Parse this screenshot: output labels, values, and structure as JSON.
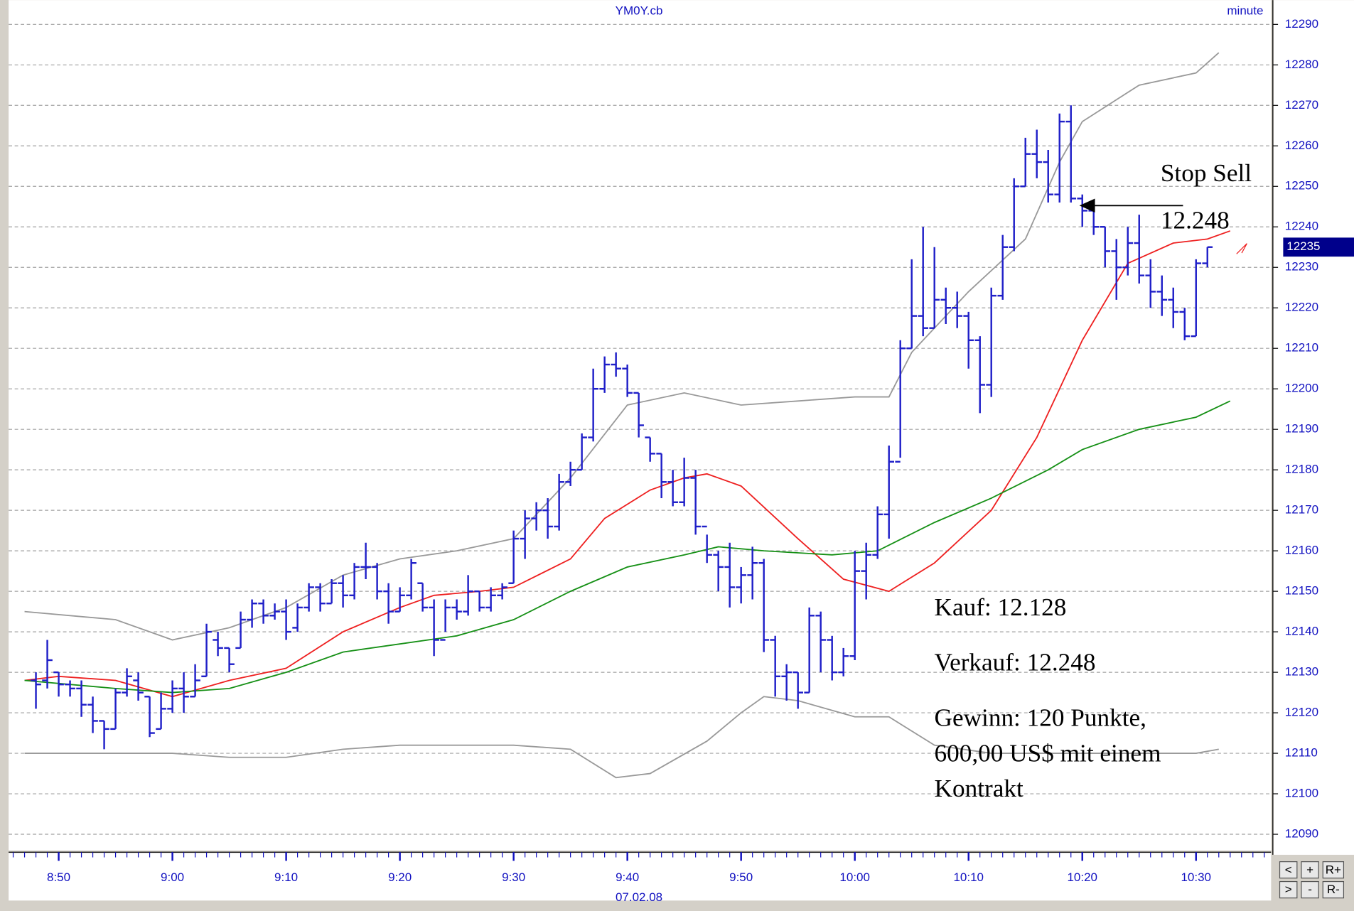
{
  "chart_data": {
    "type": "ohlc",
    "title": "YM0Y.cb",
    "interval": "minute",
    "date": "07.02.08",
    "xlim": [
      525.6,
      636.6
    ],
    "ylim": [
      12086,
      12296
    ],
    "xticks": [
      {
        "value": 530,
        "label": "8:50"
      },
      {
        "value": 540,
        "label": "9:00"
      },
      {
        "value": 550,
        "label": "9:10"
      },
      {
        "value": 560,
        "label": "9:20"
      },
      {
        "value": 570,
        "label": "9:30"
      },
      {
        "value": 580,
        "label": "9:40"
      },
      {
        "value": 590,
        "label": "9:50"
      },
      {
        "value": 600,
        "label": "10:00"
      },
      {
        "value": 610,
        "label": "10:10"
      },
      {
        "value": 620,
        "label": "10:20"
      },
      {
        "value": 630,
        "label": "10:30"
      }
    ],
    "yticks": [
      12090,
      12100,
      12110,
      12120,
      12130,
      12140,
      12150,
      12160,
      12170,
      12180,
      12190,
      12200,
      12210,
      12220,
      12230,
      12240,
      12250,
      12260,
      12270,
      12280,
      12290
    ],
    "grid": true,
    "last_price": 12235,
    "ohlc": {
      "color": "#1f1fc8",
      "x": [
        528,
        529,
        530,
        531,
        532,
        533,
        534,
        535,
        536,
        537,
        538,
        539,
        540,
        541,
        542,
        543,
        544,
        545,
        546,
        547,
        548,
        549,
        550,
        551,
        552,
        553,
        554,
        555,
        556,
        557,
        558,
        559,
        560,
        561,
        562,
        563,
        564,
        565,
        566,
        567,
        568,
        569,
        570,
        571,
        572,
        573,
        574,
        575,
        576,
        577,
        578,
        579,
        580,
        581,
        582,
        583,
        584,
        585,
        586,
        587,
        588,
        589,
        590,
        591,
        592,
        593,
        594,
        595,
        596,
        597,
        598,
        599,
        600,
        601,
        602,
        603,
        604,
        605,
        606,
        607,
        608,
        609,
        610,
        611,
        612,
        613,
        614,
        615,
        616,
        617,
        618,
        619,
        620,
        621,
        622,
        623,
        624,
        625,
        626,
        627,
        628,
        629,
        630,
        631
      ],
      "open": [
        12128,
        12128,
        12130,
        12127,
        12126,
        12122,
        12118,
        12116,
        12125,
        12128,
        12124,
        12116,
        12121,
        12126,
        12124,
        12129,
        12138,
        12136,
        12136,
        12143,
        12147,
        12144,
        12145,
        12141,
        12146,
        12151,
        12147,
        12152,
        12149,
        12156,
        12156,
        12150,
        12145,
        12149,
        12152,
        12146,
        12138,
        12146,
        12145,
        12150,
        12146,
        12149,
        12152,
        12163,
        12168,
        12170,
        12166,
        12177,
        12180,
        12188,
        12200,
        12206,
        12205,
        12199,
        12188,
        12184,
        12177,
        12172,
        12178,
        12166,
        12159,
        12156,
        12151,
        12154,
        12157,
        12138,
        12129,
        12130,
        12125,
        12144,
        12138,
        12130,
        12134,
        12155,
        12159,
        12169,
        12182,
        12210,
        12218,
        12215,
        12222,
        12220,
        12218,
        12212,
        12201,
        12223,
        12235,
        12250,
        12258,
        12256,
        12248,
        12266,
        12247,
        12244,
        12240,
        12234,
        12230,
        12236,
        12228,
        12224,
        12222,
        12219,
        12213,
        12231
      ],
      "high": [
        12130,
        12138,
        12130,
        12128,
        12128,
        12124,
        12118,
        12126,
        12131,
        12130,
        12124,
        12125,
        12128,
        12130,
        12132,
        12142,
        12140,
        12136,
        12145,
        12148,
        12148,
        12147,
        12148,
        12147,
        12152,
        12152,
        12153,
        12154,
        12157,
        12162,
        12157,
        12152,
        12151,
        12158,
        12152,
        12148,
        12148,
        12148,
        12154,
        12150,
        12151,
        12152,
        12165,
        12170,
        12172,
        12173,
        12179,
        12182,
        12189,
        12205,
        12208,
        12209,
        12206,
        12199,
        12188,
        12184,
        12180,
        12183,
        12180,
        12164,
        12160,
        12162,
        12156,
        12161,
        12158,
        12139,
        12132,
        12130,
        12146,
        12145,
        12139,
        12136,
        12160,
        12162,
        12171,
        12186,
        12212,
        12232,
        12240,
        12235,
        12225,
        12224,
        12219,
        12213,
        12225,
        12238,
        12252,
        12262,
        12264,
        12259,
        12268,
        12270,
        12248,
        12244,
        12240,
        12237,
        12240,
        12243,
        12232,
        12228,
        12225,
        12220,
        12232,
        12235
      ],
      "low": [
        12121,
        12126,
        12124,
        12124,
        12119,
        12115,
        12111,
        12116,
        12124,
        12123,
        12114,
        12116,
        12120,
        12120,
        12124,
        12129,
        12134,
        12130,
        12136,
        12141,
        12142,
        12143,
        12138,
        12140,
        12145,
        12145,
        12147,
        12146,
        12148,
        12153,
        12148,
        12142,
        12145,
        12148,
        12145,
        12134,
        12140,
        12143,
        12144,
        12145,
        12145,
        12148,
        12152,
        12158,
        12165,
        12163,
        12165,
        12176,
        12180,
        12187,
        12199,
        12203,
        12198,
        12188,
        12182,
        12173,
        12171,
        12171,
        12164,
        12157,
        12150,
        12146,
        12147,
        12148,
        12135,
        12124,
        12123,
        12121,
        12125,
        12130,
        12128,
        12129,
        12133,
        12148,
        12158,
        12163,
        12183,
        12210,
        12213,
        12215,
        12216,
        12215,
        12205,
        12194,
        12198,
        12222,
        12234,
        12250,
        12252,
        12246,
        12246,
        12246,
        12240,
        12238,
        12230,
        12222,
        12228,
        12226,
        12220,
        12218,
        12215,
        12212,
        12213,
        12230
      ],
      "close": [
        12127,
        12133,
        12127,
        12126,
        12122,
        12118,
        12116,
        12125,
        12129,
        12125,
        12115,
        12121,
        12126,
        12124,
        12128,
        12140,
        12136,
        12132,
        12143,
        12147,
        12144,
        12145,
        12140,
        12146,
        12151,
        12147,
        12152,
        12149,
        12156,
        12156,
        12150,
        12145,
        12149,
        12157,
        12146,
        12138,
        12146,
        12145,
        12150,
        12146,
        12149,
        12151,
        12163,
        12168,
        12170,
        12166,
        12177,
        12180,
        12188,
        12200,
        12206,
        12205,
        12199,
        12191,
        12184,
        12177,
        12172,
        12178,
        12166,
        12159,
        12156,
        12151,
        12154,
        12157,
        12138,
        12129,
        12130,
        12125,
        12144,
        12138,
        12130,
        12134,
        12155,
        12159,
        12169,
        12182,
        12210,
        12218,
        12215,
        12222,
        12220,
        12218,
        12212,
        12201,
        12223,
        12235,
        12250,
        12258,
        12256,
        12248,
        12266,
        12247,
        12244,
        12240,
        12234,
        12230,
        12236,
        12228,
        12224,
        12222,
        12219,
        12213,
        12231,
        12235
      ]
    },
    "series": [
      {
        "color": "#999999",
        "x": [
          527,
          535,
          540,
          545,
          550,
          555,
          560,
          565,
          570,
          575,
          580,
          585,
          590,
          595,
          600,
          603,
          605,
          610,
          615,
          618,
          620,
          625,
          630,
          632
        ],
        "values": [
          12145,
          12143,
          12138,
          12141,
          12146,
          12154,
          12158,
          12160,
          12163,
          12178,
          12196,
          12199,
          12196,
          12197,
          12198,
          12198,
          12209,
          12224,
          12237,
          12256,
          12266,
          12275,
          12278,
          12283
        ]
      },
      {
        "color": "#999999",
        "x": [
          527,
          535,
          540,
          545,
          550,
          555,
          560,
          565,
          570,
          575,
          579,
          582,
          587,
          590,
          592,
          595,
          600,
          603,
          607,
          612,
          620,
          625,
          630,
          632
        ],
        "values": [
          12110,
          12110,
          12110,
          12109,
          12109,
          12111,
          12112,
          12112,
          12112,
          12111,
          12104,
          12105,
          12113,
          12120,
          12124,
          12123,
          12119,
          12119,
          12112,
          12110,
          12110,
          12110,
          12110,
          12111
        ]
      },
      {
        "color": "#ee2020",
        "x": [
          527,
          530,
          535,
          540,
          545,
          550,
          555,
          560,
          563,
          567,
          570,
          575,
          578,
          582,
          585,
          587,
          590,
          595,
          599,
          603,
          607,
          612,
          616,
          620,
          624,
          628,
          631,
          633
        ],
        "values": [
          12128,
          12129,
          12128,
          12124,
          12128,
          12131,
          12140,
          12146,
          12149,
          12150,
          12151,
          12158,
          12168,
          12175,
          12178,
          12179,
          12176,
          12163,
          12153,
          12150,
          12157,
          12170,
          12188,
          12212,
          12231,
          12236,
          12237,
          12239
        ]
      },
      {
        "color": "#169016",
        "x": [
          527,
          535,
          540,
          545,
          550,
          555,
          560,
          565,
          570,
          575,
          580,
          585,
          588,
          592,
          598,
          602,
          607,
          612,
          617,
          620,
          625,
          630,
          633
        ],
        "values": [
          12128,
          12126,
          12125,
          12126,
          12130,
          12135,
          12137,
          12139,
          12143,
          12150,
          12156,
          12159,
          12161,
          12160,
          12159,
          12160,
          12167,
          12173,
          12180,
          12185,
          12190,
          12193,
          12197
        ]
      }
    ],
    "annotations": [
      "Stop Sell",
      "12.248",
      "Kauf: 12.128",
      "Verkauf: 12.248",
      "Gewinn: 120 Punkte,",
      "600,00 US$ mit einem",
      "Kontrakt"
    ]
  },
  "controls": [
    "<",
    "+",
    "R+",
    ">",
    "-",
    "R-"
  ]
}
